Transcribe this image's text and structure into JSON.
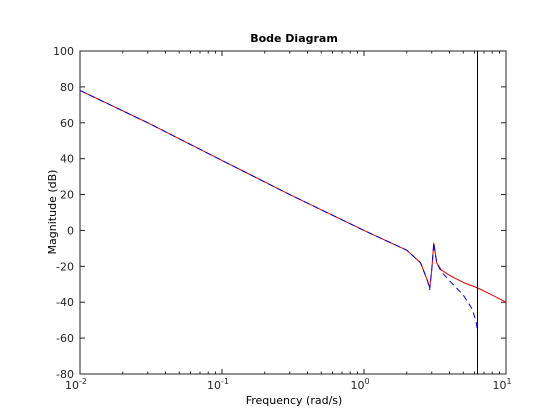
{
  "chart_data": {
    "type": "line",
    "title": "Bode Diagram",
    "xlabel": "Frequency  (rad/s)",
    "ylabel": "Magnitude (dB)",
    "xscale": "log",
    "xlim": [
      0.01,
      10
    ],
    "ylim": [
      -80,
      100
    ],
    "x_ticks": [
      {
        "value": 0.01,
        "base": "10",
        "exp": "-2"
      },
      {
        "value": 0.1,
        "base": "10",
        "exp": "-1"
      },
      {
        "value": 1,
        "base": "10",
        "exp": "0"
      },
      {
        "value": 10,
        "base": "10",
        "exp": "1"
      }
    ],
    "y_ticks": [
      -80,
      -60,
      -40,
      -20,
      0,
      20,
      40,
      60,
      80,
      100
    ],
    "grid": false,
    "vertical_line_x": 6.3,
    "colors": {
      "vertical_line": "#000000",
      "axes": "#262626"
    },
    "series": [
      {
        "style": "solid",
        "color": "#e00000",
        "points": [
          [
            0.01,
            78
          ],
          [
            0.03,
            60
          ],
          [
            0.1,
            39
          ],
          [
            0.3,
            20
          ],
          [
            1,
            0
          ],
          [
            2,
            -11
          ],
          [
            2.5,
            -18
          ],
          [
            2.8,
            -28
          ],
          [
            2.9,
            -32
          ],
          [
            3.0,
            -22
          ],
          [
            3.1,
            -7
          ],
          [
            3.25,
            -18
          ],
          [
            3.5,
            -22
          ],
          [
            4,
            -25
          ],
          [
            5,
            -29
          ],
          [
            6.3,
            -32
          ],
          [
            8,
            -36
          ],
          [
            10,
            -40
          ]
        ]
      },
      {
        "style": "dashed",
        "color": "#0000c8",
        "points": [
          [
            0.01,
            78
          ],
          [
            0.03,
            60
          ],
          [
            0.1,
            39
          ],
          [
            0.3,
            20
          ],
          [
            1,
            0
          ],
          [
            2,
            -11
          ],
          [
            2.5,
            -18
          ],
          [
            2.8,
            -28
          ],
          [
            2.9,
            -33
          ],
          [
            3.0,
            -22
          ],
          [
            3.1,
            -7
          ],
          [
            3.25,
            -18
          ],
          [
            3.5,
            -23
          ],
          [
            4,
            -28
          ],
          [
            5,
            -36
          ],
          [
            5.8,
            -44
          ],
          [
            6.2,
            -52
          ],
          [
            6.3,
            -57
          ]
        ]
      }
    ]
  }
}
